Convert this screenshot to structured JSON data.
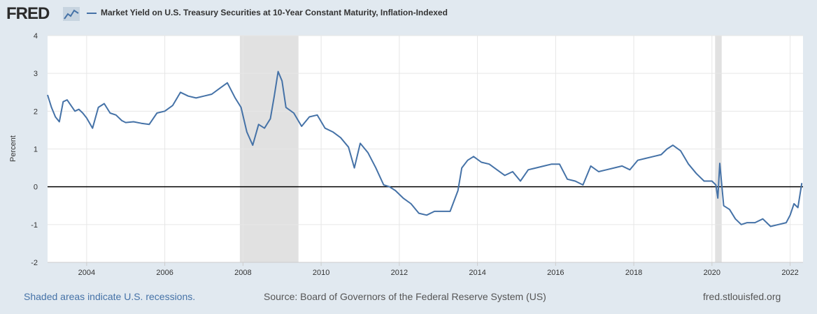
{
  "logo": {
    "text": "FRED"
  },
  "legend": {
    "series_name": "Market Yield on U.S. Treasury Securities at 10-Year Constant Maturity, Inflation-Indexed",
    "color": "#4572a7"
  },
  "footer": {
    "note": "Shaded areas indicate U.S. recessions.",
    "source": "Source: Board of Governors of the Federal Reserve System (US)",
    "site": "fred.stlouisfed.org"
  },
  "chart_data": {
    "type": "line",
    "title": "",
    "xlabel": "",
    "ylabel": "Percent",
    "xlim": [
      2003.0,
      2022.33
    ],
    "ylim": [
      -2,
      4
    ],
    "y_ticks": [
      -2,
      -1,
      0,
      1,
      2,
      3,
      4
    ],
    "x_ticks": [
      "2004",
      "2006",
      "2008",
      "2010",
      "2012",
      "2014",
      "2016",
      "2018",
      "2020",
      "2022"
    ],
    "x_tick_values": [
      2004,
      2006,
      2008,
      2010,
      2012,
      2014,
      2016,
      2018,
      2020,
      2022
    ],
    "grid": true,
    "zero_line": true,
    "recessions": [
      [
        2007.92,
        2009.42
      ],
      [
        2020.08,
        2020.25
      ]
    ],
    "series": [
      {
        "name": "Market Yield on U.S. Treasury Securities at 10-Year Constant Maturity, Inflation-Indexed",
        "color": "#4572a7",
        "x": [
          2003.0,
          2003.1,
          2003.2,
          2003.3,
          2003.4,
          2003.5,
          2003.6,
          2003.7,
          2003.8,
          2003.9,
          2004.0,
          2004.15,
          2004.3,
          2004.45,
          2004.6,
          2004.75,
          2004.9,
          2005.0,
          2005.2,
          2005.4,
          2005.6,
          2005.8,
          2006.0,
          2006.2,
          2006.4,
          2006.6,
          2006.8,
          2007.0,
          2007.2,
          2007.4,
          2007.6,
          2007.8,
          2007.95,
          2008.1,
          2008.25,
          2008.4,
          2008.55,
          2008.7,
          2008.8,
          2008.9,
          2009.0,
          2009.1,
          2009.3,
          2009.5,
          2009.7,
          2009.9,
          2010.1,
          2010.3,
          2010.5,
          2010.7,
          2010.85,
          2011.0,
          2011.2,
          2011.4,
          2011.6,
          2011.75,
          2011.9,
          2012.1,
          2012.3,
          2012.5,
          2012.7,
          2012.9,
          2013.1,
          2013.3,
          2013.5,
          2013.6,
          2013.75,
          2013.9,
          2014.1,
          2014.3,
          2014.5,
          2014.7,
          2014.9,
          2015.1,
          2015.3,
          2015.5,
          2015.7,
          2015.9,
          2016.1,
          2016.3,
          2016.5,
          2016.7,
          2016.9,
          2017.1,
          2017.3,
          2017.5,
          2017.7,
          2017.9,
          2018.1,
          2018.3,
          2018.5,
          2018.7,
          2018.85,
          2019.0,
          2019.2,
          2019.4,
          2019.6,
          2019.8,
          2020.0,
          2020.1,
          2020.15,
          2020.2,
          2020.3,
          2020.45,
          2020.6,
          2020.75,
          2020.9,
          2021.1,
          2021.3,
          2021.5,
          2021.7,
          2021.9,
          2022.0,
          2022.1,
          2022.2,
          2022.3
        ],
        "values": [
          2.43,
          2.1,
          1.85,
          1.72,
          2.25,
          2.3,
          2.15,
          2.0,
          2.05,
          1.95,
          1.82,
          1.55,
          2.1,
          2.2,
          1.95,
          1.9,
          1.75,
          1.7,
          1.72,
          1.68,
          1.65,
          1.95,
          2.0,
          2.15,
          2.5,
          2.4,
          2.35,
          2.4,
          2.45,
          2.6,
          2.75,
          2.35,
          2.1,
          1.45,
          1.1,
          1.65,
          1.55,
          1.8,
          2.4,
          3.05,
          2.8,
          2.1,
          1.95,
          1.6,
          1.85,
          1.9,
          1.55,
          1.45,
          1.3,
          1.05,
          0.5,
          1.15,
          0.9,
          0.5,
          0.05,
          0.0,
          -0.1,
          -0.3,
          -0.45,
          -0.7,
          -0.75,
          -0.65,
          -0.65,
          -0.65,
          -0.1,
          0.5,
          0.7,
          0.8,
          0.65,
          0.6,
          0.45,
          0.3,
          0.4,
          0.15,
          0.45,
          0.5,
          0.55,
          0.6,
          0.6,
          0.2,
          0.15,
          0.05,
          0.55,
          0.4,
          0.45,
          0.5,
          0.55,
          0.45,
          0.7,
          0.75,
          0.8,
          0.85,
          1.0,
          1.1,
          0.95,
          0.6,
          0.35,
          0.15,
          0.15,
          0.05,
          -0.3,
          0.62,
          -0.5,
          -0.6,
          -0.85,
          -1.0,
          -0.95,
          -0.95,
          -0.85,
          -1.05,
          -1.0,
          -0.95,
          -0.75,
          -0.45,
          -0.55,
          0.1
        ]
      }
    ]
  }
}
